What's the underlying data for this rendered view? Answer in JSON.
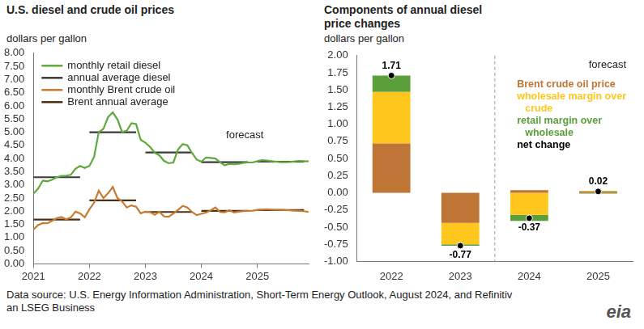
{
  "source": "Data source: U.S. Energy Information Administration, Short-Term Energy Outlook, August 2024, and Refinitiv an LSEG Business",
  "logo": "eia",
  "chart_data": [
    {
      "type": "line",
      "title": "U.S. diesel and crude oil prices",
      "ylabel": "dollars per gallon",
      "categories": [
        "2021",
        null,
        null,
        null,
        null,
        null,
        null,
        null,
        null,
        null,
        null,
        null,
        "2022",
        null,
        null,
        null,
        null,
        null,
        null,
        null,
        null,
        null,
        null,
        null,
        "2023",
        null,
        null,
        null,
        null,
        null,
        null,
        null,
        null,
        null,
        null,
        null,
        "2024",
        null,
        null,
        null,
        null,
        null,
        null,
        null,
        null,
        null,
        null,
        null,
        "2025",
        null,
        null,
        null,
        null,
        null,
        null,
        null,
        null,
        null,
        null,
        null
      ],
      "series": [
        {
          "name": "monthly retail diesel",
          "color": "#5FA83B",
          "marker": "none",
          "line_style": "solid",
          "values": [
            2.67,
            2.86,
            3.16,
            3.13,
            3.2,
            3.29,
            3.34,
            3.35,
            3.38,
            3.61,
            3.72,
            3.64,
            3.72,
            4.06,
            5.0,
            5.13,
            5.57,
            5.75,
            5.49,
            5.01,
            5.05,
            5.34,
            5.31,
            4.71,
            4.6,
            4.44,
            4.22,
            4.12,
            3.91,
            3.82,
            3.85,
            4.35,
            4.55,
            4.5,
            4.21,
            3.96,
            3.88,
            4.04,
            4.02,
            4.0,
            3.86,
            3.74,
            3.8,
            3.78,
            3.8,
            3.84,
            3.85,
            3.85,
            3.9,
            3.94,
            3.92,
            3.9,
            3.88,
            3.86,
            3.86,
            3.87,
            3.89,
            3.91,
            3.9,
            3.89
          ]
        },
        {
          "name": "annual average diesel",
          "color": "#3A3A3A",
          "marker": "none",
          "line_style": "solid",
          "values": [
            3.29,
            3.29,
            3.29,
            3.29,
            3.29,
            3.29,
            3.29,
            3.29,
            3.29,
            3.29,
            3.29,
            null,
            5.0,
            5.0,
            5.0,
            5.0,
            5.0,
            5.0,
            5.0,
            5.0,
            5.0,
            5.0,
            5.0,
            null,
            4.23,
            4.23,
            4.23,
            4.23,
            4.23,
            4.23,
            4.23,
            4.23,
            4.23,
            4.23,
            4.23,
            null,
            3.86,
            3.86,
            3.86,
            3.86,
            3.86,
            3.86,
            3.86,
            3.86,
            3.86,
            3.86,
            3.86,
            null,
            3.88,
            3.88,
            3.88,
            3.88,
            3.88,
            3.88,
            3.88,
            3.88,
            3.88,
            3.88,
            3.88,
            null
          ]
        },
        {
          "name": "monthly Brent crude oil",
          "color": "#C77A30",
          "marker": "none",
          "line_style": "solid",
          "values": [
            1.3,
            1.47,
            1.55,
            1.54,
            1.63,
            1.74,
            1.78,
            1.69,
            1.76,
            1.98,
            1.92,
            1.77,
            2.07,
            2.32,
            2.78,
            2.5,
            2.68,
            2.92,
            2.5,
            2.37,
            2.14,
            2.22,
            2.17,
            1.92,
            1.98,
            1.97,
            1.86,
            1.98,
            1.8,
            1.79,
            1.91,
            2.05,
            2.2,
            2.14,
            1.97,
            1.85,
            1.9,
            1.95,
            2.03,
            2.14,
            1.97,
            1.96,
            2.03,
            1.95,
            1.98,
            2.0,
            2.01,
            2.02,
            2.05,
            2.06,
            2.07,
            2.06,
            2.05,
            2.05,
            2.04,
            2.03,
            2.02,
            2.01,
            2.0,
            1.97
          ]
        },
        {
          "name": "Brent annual average",
          "color": "#4B2E12",
          "marker": "none",
          "line_style": "solid",
          "values": [
            1.68,
            1.68,
            1.68,
            1.68,
            1.68,
            1.68,
            1.68,
            1.68,
            1.68,
            1.68,
            1.68,
            null,
            2.41,
            2.41,
            2.41,
            2.41,
            2.41,
            2.41,
            2.41,
            2.41,
            2.41,
            2.41,
            2.41,
            null,
            1.97,
            1.97,
            1.97,
            1.97,
            1.97,
            1.97,
            1.97,
            1.97,
            1.97,
            1.97,
            1.97,
            null,
            2.01,
            2.01,
            2.01,
            2.01,
            2.01,
            2.01,
            2.01,
            2.01,
            2.01,
            2.01,
            2.01,
            null,
            2.04,
            2.04,
            2.04,
            2.04,
            2.04,
            2.04,
            2.04,
            2.04,
            2.04,
            2.04,
            2.04,
            null
          ]
        }
      ],
      "ylim": [
        0,
        8
      ],
      "yticks": [
        {
          "value": 0,
          "label": "0.00"
        },
        {
          "value": 0.5,
          "label": "0.50"
        },
        {
          "value": 1,
          "label": "1.00"
        },
        {
          "value": 1.5,
          "label": "1.50"
        },
        {
          "value": 2,
          "label": "2.00"
        },
        {
          "value": 2.5,
          "label": "2.50"
        },
        {
          "value": 3,
          "label": "3.00"
        },
        {
          "value": 3.5,
          "label": "3.50"
        },
        {
          "value": 4,
          "label": "4.00"
        },
        {
          "value": 4.5,
          "label": "4.50"
        },
        {
          "value": 5,
          "label": "5.00"
        },
        {
          "value": 5.5,
          "label": "5.50"
        },
        {
          "value": 6,
          "label": "6.00"
        },
        {
          "value": 6.5,
          "label": "6.50"
        },
        {
          "value": 7,
          "label": "7.00"
        },
        {
          "value": 7.5,
          "label": "7.50"
        },
        {
          "value": 8,
          "label": "8.00"
        }
      ],
      "grid": false,
      "legend": "upper left",
      "annotations": [
        {
          "text": "forecast"
        }
      ]
    },
    {
      "type": "bar",
      "title": "Components of annual diesel price changes",
      "ylabel": "dollars per gallon",
      "categories": [
        "2022",
        "2023",
        "2024",
        "2025"
      ],
      "stacked": true,
      "series": [
        {
          "name": "Brent crude oil price",
          "color": "#BF7536",
          "values": [
            0.72,
            -0.44,
            0.04,
            0.02
          ]
        },
        {
          "name": "wholesale margin over crude",
          "color": "#FFC61E",
          "values": [
            0.75,
            -0.31,
            -0.32,
            0.01
          ]
        },
        {
          "name": "retail margin over wholesale",
          "color": "#5B9F3B",
          "values": [
            0.24,
            -0.02,
            -0.09,
            -0.01
          ]
        },
        {
          "name": "net change",
          "color": "#000000",
          "type": "scatter",
          "marker": "circle",
          "data_labels": true,
          "values": [
            1.71,
            -0.77,
            -0.37,
            0.02
          ]
        }
      ],
      "ylim": [
        -1,
        2
      ],
      "yticks": [
        {
          "value": -1,
          "label": "-1.00"
        },
        {
          "value": -0.75,
          "label": "-0.75"
        },
        {
          "value": -0.5,
          "label": "-0.50"
        },
        {
          "value": -0.25,
          "label": "-0.25"
        },
        {
          "value": 0,
          "label": "0.00"
        },
        {
          "value": 0.25,
          "label": "0.25"
        },
        {
          "value": 0.5,
          "label": "0.50"
        },
        {
          "value": 0.75,
          "label": "0.75"
        },
        {
          "value": 1,
          "label": "1.00"
        },
        {
          "value": 1.25,
          "label": "1.25"
        },
        {
          "value": 1.5,
          "label": "1.50"
        },
        {
          "value": 1.75,
          "label": "1.75"
        },
        {
          "value": 2,
          "label": "2.00"
        }
      ],
      "grid": false,
      "legend": "upper right",
      "annotations": [
        {
          "text": "forecast",
          "x": "2024"
        }
      ]
    }
  ]
}
